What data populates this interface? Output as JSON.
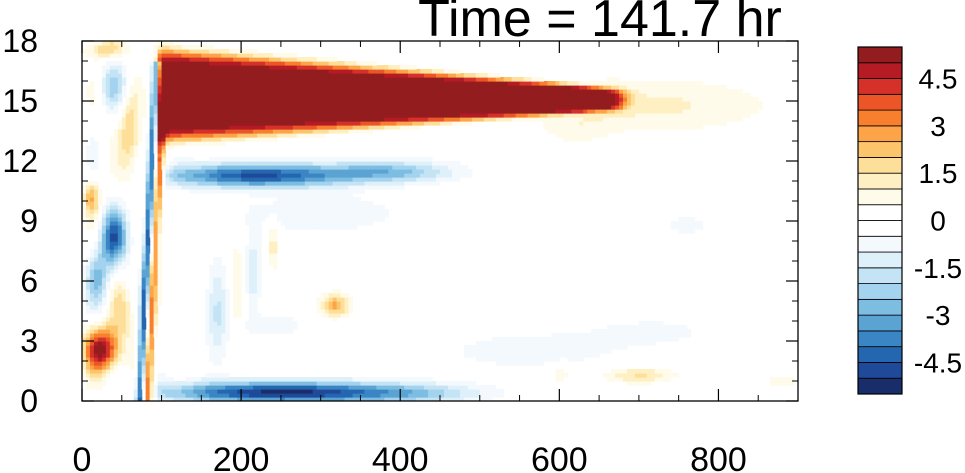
{
  "chart_data": {
    "type": "heatmap",
    "title": "Time = 141.7 hr",
    "xlabel": "",
    "ylabel": "",
    "xlim": [
      0,
      900
    ],
    "ylim": [
      0,
      18
    ],
    "x_ticks": [
      0,
      200,
      400,
      600,
      800
    ],
    "x_tick_labels": [
      "0",
      "200",
      "400",
      "600",
      "800"
    ],
    "y_ticks": [
      0,
      3,
      6,
      9,
      12,
      15,
      18
    ],
    "y_tick_labels": [
      "0",
      "3",
      "6",
      "9",
      "12",
      "15",
      "18"
    ],
    "grid": false,
    "colorbar": {
      "levels": [
        -5.5,
        -5,
        -4.5,
        -4,
        -3.5,
        -3,
        -2.5,
        -2,
        -1.5,
        -1,
        -0.5,
        0,
        0.5,
        1,
        1.5,
        2,
        2.5,
        3,
        3.5,
        4,
        4.5,
        5,
        5.5
      ],
      "colors": [
        "#1a2d6b",
        "#1e4a99",
        "#2566b0",
        "#3a85c4",
        "#5aa3d3",
        "#7ebde2",
        "#a3d3ee",
        "#c4e3f4",
        "#def0fa",
        "#f4f9fd",
        "#ffffff",
        "#ffffff",
        "#fffbea",
        "#fff0c4",
        "#fedf9a",
        "#fdc56b",
        "#fca447",
        "#f87f2e",
        "#ec5528",
        "#d5302a",
        "#b51b25",
        "#931c1f"
      ],
      "tick_values": [
        4.5,
        3,
        1.5,
        0,
        -1.5,
        -3,
        -4.5
      ],
      "tick_labels": [
        "4.5",
        "3",
        "1.5",
        "0",
        "-1.5",
        "-3",
        "-4.5"
      ]
    },
    "features": [
      {
        "kind": "upper_positive_jet",
        "x": [
          95,
          700
        ],
        "y_center": 15.3,
        "peak": 6
      },
      {
        "kind": "negative_band_below_jet",
        "x": [
          100,
          460
        ],
        "y_center": 11.4,
        "peak": -4.5
      },
      {
        "kind": "positive_tail_upper",
        "x": [
          520,
          880
        ],
        "y_center": 14.6,
        "peak": 1.2
      },
      {
        "kind": "negative_surface_band",
        "x": [
          90,
          500
        ],
        "y_center": 0.5,
        "peak": -5
      },
      {
        "kind": "tilted_front_negative",
        "x": [
          80,
          100
        ],
        "y": [
          0,
          17
        ],
        "peak": -4
      },
      {
        "kind": "tilted_front_positive",
        "x": [
          85,
          105
        ],
        "y": [
          0,
          17
        ],
        "peak": 3
      },
      {
        "kind": "positive_blob_lower_left",
        "x": [
          0,
          60
        ],
        "y_center": 2.5,
        "peak": 5
      },
      {
        "kind": "negative_blob_left",
        "x": [
          20,
          60
        ],
        "y_center": 8.2,
        "peak": -4
      },
      {
        "kind": "positive_blob_small",
        "x": [
          290,
          350
        ],
        "y_center": 4.8,
        "peak": 2.5
      },
      {
        "kind": "positive_blob_surface",
        "x": [
          650,
          750
        ],
        "y_center": 1.3,
        "peak": 1.5
      }
    ]
  }
}
